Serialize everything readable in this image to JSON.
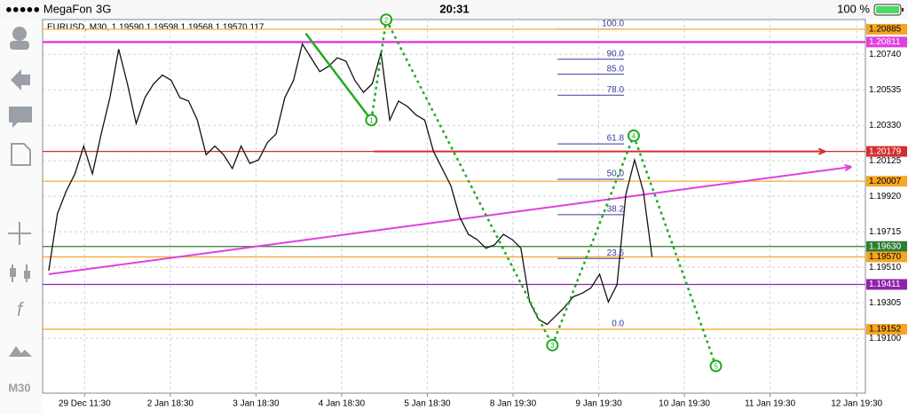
{
  "status_bar": {
    "carrier": "●●●●● MegaFon",
    "network": "3G",
    "time": "20:31",
    "battery": "100 %"
  },
  "toolbar": {
    "timeframe": "M30"
  },
  "chart_data": {
    "type": "line",
    "title": "EURUSD, M30, 1.19590 1.19598 1.19568 1.19570 117",
    "color": "#111111",
    "grid": true,
    "xlim": [
      -0.7,
      93.4
    ],
    "ylim": [
      1.18783,
      1.20941
    ],
    "values": [
      1.1949,
      1.1982,
      1.1995,
      1.2005,
      1.2021,
      1.2005,
      1.2028,
      1.2049,
      1.2077,
      1.2057,
      1.2034,
      1.2049,
      1.2057,
      1.2062,
      1.2059,
      1.2049,
      1.2047,
      1.2036,
      1.2016,
      1.2021,
      1.2016,
      1.2008,
      1.2021,
      1.2011,
      1.2013,
      1.2023,
      1.2028,
      1.2049,
      1.2059,
      1.208,
      1.2072,
      1.2064,
      1.2067,
      1.2072,
      1.207,
      1.2059,
      1.2052,
      1.2057,
      1.2075,
      1.2036,
      1.2047,
      1.2044,
      1.2039,
      1.2036,
      1.2018,
      1.2008,
      1.1998,
      1.198,
      1.197,
      1.1967,
      1.1962,
      1.1964,
      1.197,
      1.1967,
      1.1962,
      1.1931,
      1.1921,
      1.1918,
      1.1923,
      1.1928,
      1.1934,
      1.1936,
      1.1939,
      1.1947,
      1.1931,
      1.1941,
      1.1993,
      1.2013,
      1.1995,
      1.1957
    ],
    "yticks": [
      {
        "value": 1.2074,
        "label": "1.20740"
      },
      1.20535,
      {
        "value": 1.2033,
        "label": "1.20330"
      },
      1.20125,
      {
        "value": 1.1992,
        "label": "1.19920"
      },
      1.19715,
      {
        "value": 1.1951,
        "label": "1.19510"
      },
      1.19305,
      {
        "value": 1.191,
        "label": "1.19100"
      }
    ],
    "xticks": [
      {
        "value": 4.1,
        "label": "29 Dec 11:30"
      },
      {
        "value": 13.9,
        "label": "2 Jan 18:30"
      },
      {
        "value": 23.7,
        "label": "3 Jan 18:30"
      },
      {
        "value": 33.5,
        "label": "4 Jan 18:30"
      },
      {
        "value": 43.3,
        "label": "5 Jan 18:30"
      },
      {
        "value": 53.1,
        "label": "8 Jan 19:30"
      },
      {
        "value": 62.9,
        "label": "9 Jan 19:30"
      },
      {
        "value": 72.7,
        "label": "10 Jan 19:30"
      },
      {
        "value": 82.5,
        "label": "11 Jan 19:30"
      },
      {
        "value": 92.4,
        "label": "12 Jan 19:30"
      }
    ],
    "levels": [
      {
        "value": 1.20885,
        "color": "#f5a623"
      },
      {
        "value": 1.20811,
        "color": "#e040e0"
      },
      {
        "value": 1.20179,
        "color": "#d32f2f"
      },
      {
        "value": 1.20007,
        "color": "#f5a623"
      },
      {
        "value": 1.1963,
        "label": "1.19630",
        "color": "#2e7d32"
      },
      {
        "value": 1.1957,
        "label": "1.19570",
        "color": "#f5a623"
      },
      {
        "value": 1.19411,
        "color": "#8e24aa"
      },
      {
        "value": 1.19152,
        "color": "#f5a623"
      }
    ],
    "fib": {
      "low": 1.19152,
      "high": 1.20885,
      "x": [
        58.2,
        65.8
      ],
      "color": "#3a3aa0",
      "levels": [
        {
          "value": 100,
          "label": "100.0"
        },
        {
          "value": 90,
          "label": "90.0"
        },
        {
          "value": 85,
          "label": "85.0"
        },
        {
          "value": 78,
          "label": "78.0"
        },
        61.8,
        {
          "value": 50,
          "label": "50.0"
        },
        38.2,
        23.6,
        {
          "value": 0,
          "label": "0.0"
        }
      ]
    },
    "arrows": [
      {
        "color": "#d32f2f",
        "x": [
          37.2,
          88.8
        ],
        "y": [
          1.20179,
          1.20179
        ]
      },
      {
        "color": "#e040e0",
        "x": [
          0,
          91.8
        ],
        "y": [
          1.1947,
          1.2009
        ]
      }
    ],
    "wave": {
      "color": "#22aa22",
      "points": [
        {
          "x": 29.4,
          "y": 1.2086
        },
        {
          "x": 36.9,
          "y": 1.2036,
          "label": "1"
        },
        {
          "x": 38.6,
          "y": 1.2094,
          "label": "2"
        },
        {
          "x": 57.6,
          "y": 1.1906,
          "label": "3"
        },
        {
          "x": 66.9,
          "y": 1.2027,
          "label": "4"
        },
        {
          "x": 76.3,
          "y": 1.1894,
          "label": "5"
        }
      ]
    }
  }
}
